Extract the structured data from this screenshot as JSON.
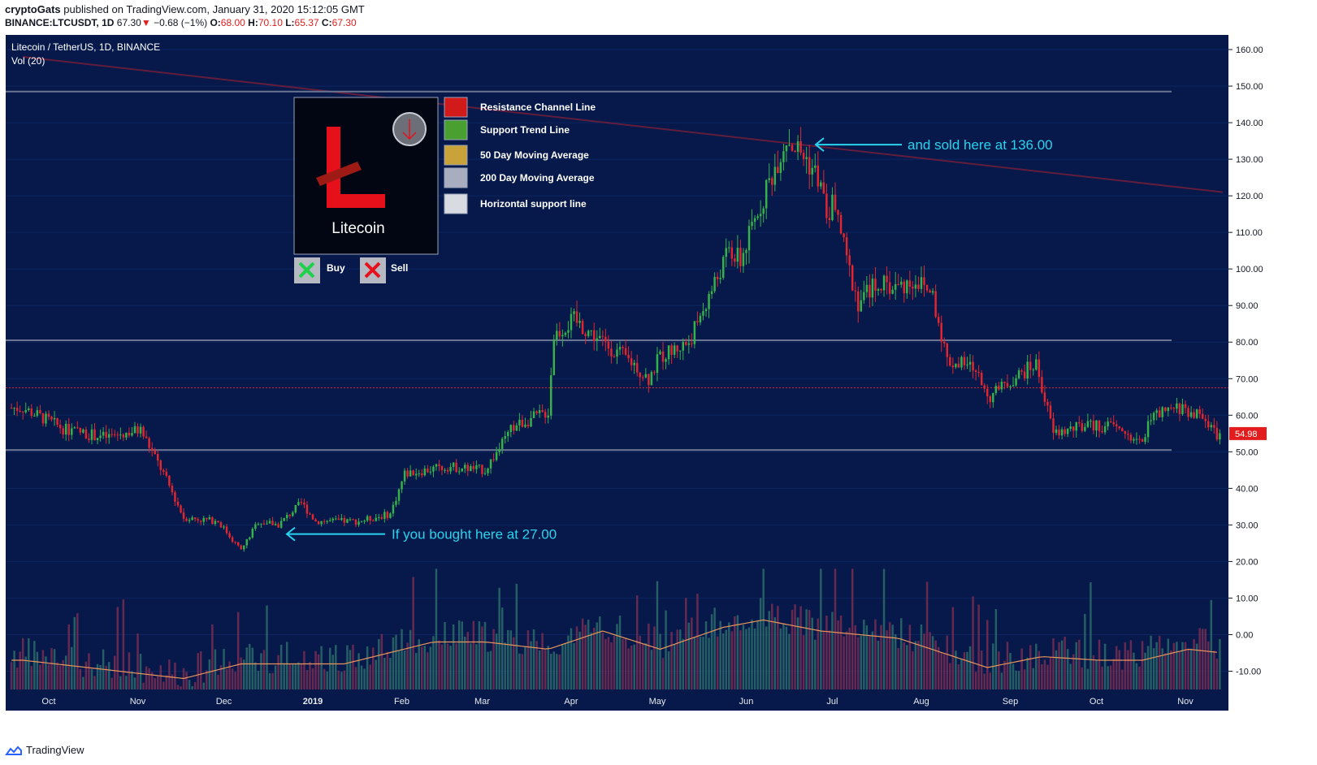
{
  "header": {
    "author": "cryptoGats",
    "published_text": " published on TradingView.com, January 31, 2020 15:12:05 GMT",
    "symbol": "BINANCE:LTCUSDT, 1D",
    "last": "67.30",
    "arrow": "▼",
    "change": "−0.68 (−1%)",
    "open_label": "O:",
    "open": "68.00",
    "high_label": "H:",
    "high": "70.10",
    "low_label": "L:",
    "low": "65.37",
    "close_label": "C:",
    "close": "67.30"
  },
  "footer": {
    "brand": "TradingView"
  },
  "colors": {
    "background": "#06194a",
    "up": "#35b34a",
    "down": "#e2262f",
    "annotation": "#29d3ee",
    "volume_ma": "#e9955a",
    "resistance": "#7a1f3a",
    "price_badge": "#e31d1d"
  },
  "chart_data": {
    "type": "candlestick",
    "title": "Litecoin / TetherUS, 1D, BINANCE",
    "volume_label": "Vol (20)",
    "ylim": [
      -15,
      164
    ],
    "yticks": [
      "160.00",
      "150.00",
      "140.00",
      "130.00",
      "120.00",
      "110.00",
      "100.00",
      "90.00",
      "80.00",
      "70.00",
      "60.00",
      "50.00",
      "40.00",
      "30.00",
      "20.00",
      "10.00",
      "0.00",
      "-10.00"
    ],
    "xticks": [
      "Oct",
      "Nov",
      "Dec",
      "2019",
      "Feb",
      "Mar",
      "Apr",
      "May",
      "Jun",
      "Jul",
      "Aug",
      "Sep",
      "Oct",
      "Nov"
    ],
    "current_price": "54.98",
    "price_keyframes": [
      [
        "2018-09-30",
        62
      ],
      [
        "2018-10-15",
        56
      ],
      [
        "2018-10-29",
        54
      ],
      [
        "2018-11-10",
        56
      ],
      [
        "2018-11-18",
        44
      ],
      [
        "2018-11-25",
        32
      ],
      [
        "2018-12-07",
        31
      ],
      [
        "2018-12-15",
        23
      ],
      [
        "2018-12-21",
        31
      ],
      [
        "2018-12-28",
        30
      ],
      [
        "2019-01-05",
        36
      ],
      [
        "2019-01-10",
        31
      ],
      [
        "2019-01-25",
        31
      ],
      [
        "2019-02-05",
        33
      ],
      [
        "2019-02-10",
        44
      ],
      [
        "2019-02-25",
        46
      ],
      [
        "2019-03-10",
        45
      ],
      [
        "2019-03-20",
        57
      ],
      [
        "2019-04-01",
        61
      ],
      [
        "2019-04-03",
        82
      ],
      [
        "2019-04-10",
        86
      ],
      [
        "2019-04-20",
        80
      ],
      [
        "2019-05-01",
        74
      ],
      [
        "2019-05-06",
        70
      ],
      [
        "2019-05-10",
        76
      ],
      [
        "2019-05-20",
        80
      ],
      [
        "2019-06-03",
        105
      ],
      [
        "2019-06-07",
        102
      ],
      [
        "2019-06-15",
        120
      ],
      [
        "2019-06-23",
        136
      ],
      [
        "2019-06-30",
        130
      ],
      [
        "2019-07-04",
        125
      ],
      [
        "2019-07-07",
        115
      ],
      [
        "2019-07-10",
        118
      ],
      [
        "2019-07-14",
        102
      ],
      [
        "2019-07-18",
        91
      ],
      [
        "2019-07-24",
        96
      ],
      [
        "2019-08-01",
        95
      ],
      [
        "2019-08-07",
        97
      ],
      [
        "2019-08-13",
        93
      ],
      [
        "2019-08-18",
        75
      ],
      [
        "2019-08-27",
        73
      ],
      [
        "2019-09-02",
        65
      ],
      [
        "2019-09-10",
        70
      ],
      [
        "2019-09-18",
        74
      ],
      [
        "2019-09-24",
        55
      ],
      [
        "2019-10-05",
        57
      ],
      [
        "2019-10-15",
        57
      ],
      [
        "2019-10-25",
        52
      ],
      [
        "2019-10-27",
        59
      ],
      [
        "2019-11-07",
        62
      ],
      [
        "2019-11-14",
        60
      ],
      [
        "2019-11-20",
        55
      ]
    ],
    "volume_keyframes": [
      [
        "2018-09-30",
        -7
      ],
      [
        "2018-11-25",
        -12
      ],
      [
        "2018-12-15",
        -8
      ],
      [
        "2019-01-20",
        -8
      ],
      [
        "2019-02-20",
        -2
      ],
      [
        "2019-03-10",
        -2
      ],
      [
        "2019-04-01",
        -4
      ],
      [
        "2019-04-20",
        1
      ],
      [
        "2019-05-10",
        -4
      ],
      [
        "2019-06-01",
        2
      ],
      [
        "2019-06-15",
        4
      ],
      [
        "2019-07-05",
        1
      ],
      [
        "2019-08-01",
        -1
      ],
      [
        "2019-09-01",
        -9
      ],
      [
        "2019-09-20",
        -6
      ],
      [
        "2019-10-10",
        -7
      ],
      [
        "2019-10-25",
        -7
      ],
      [
        "2019-11-10",
        -4
      ],
      [
        "2019-11-22",
        -5
      ]
    ],
    "horizontal_lines": [
      {
        "price": 148.5,
        "style": "gray"
      },
      {
        "price": 80.5,
        "style": "gray"
      },
      {
        "price": 67.5,
        "style": "red-dotted"
      },
      {
        "price": 50.5,
        "style": "gray"
      }
    ],
    "resistance_line": [
      [
        "2018-09-30",
        158
      ],
      [
        "2019-11-22",
        121
      ]
    ],
    "annotations": [
      {
        "text": "If you bought here at 27.00",
        "date": "2019-01-01",
        "price": 27.5
      },
      {
        "text": "and sold here at 136.00",
        "date": "2019-06-30",
        "price": 134
      }
    ],
    "legend": {
      "coin_name": "Litecoin",
      "items": [
        {
          "label": "Resistance Channel Line",
          "color": "#d21a1a"
        },
        {
          "label": "Support Trend Line",
          "color": "#4a9f31"
        },
        {
          "label": "50 Day Moving Average",
          "color": "#c9a33a"
        },
        {
          "label": "200 Day Moving Average",
          "color": "#a8adbf"
        },
        {
          "label": "Horizontal support line",
          "color": "#d9dbe3"
        }
      ],
      "buy_label": "Buy",
      "sell_label": "Sell"
    }
  }
}
